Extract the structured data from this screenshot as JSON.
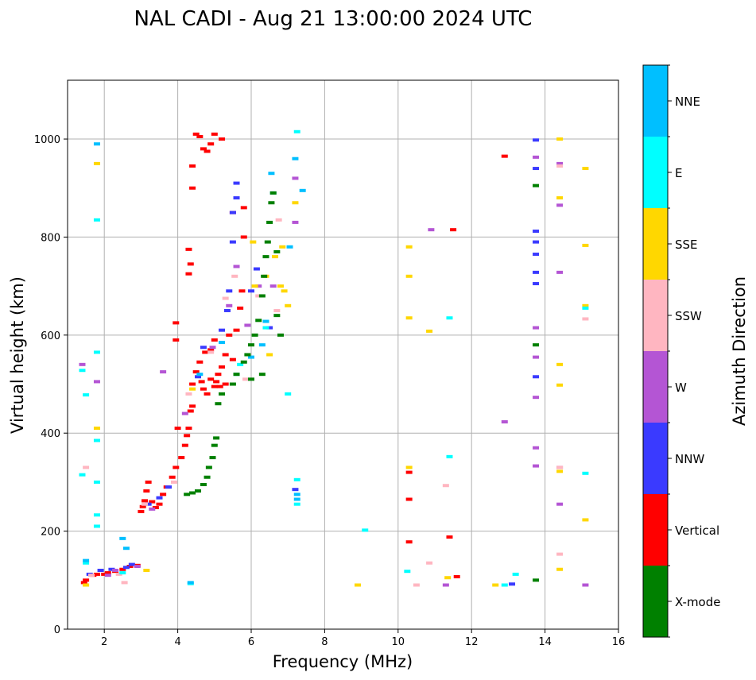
{
  "chart_data": {
    "type": "scatter",
    "title": "NAL CADI - Aug 21 13:00:00 2024 UTC",
    "xlabel": "Frequency (MHz)",
    "ylabel": "Virtual height (km)",
    "xlim": [
      1,
      16
    ],
    "ylim": [
      0,
      1120
    ],
    "xticks": [
      2,
      4,
      6,
      8,
      10,
      12,
      14,
      16
    ],
    "yticks": [
      0,
      200,
      400,
      600,
      800,
      1000
    ],
    "grid": true,
    "colorbar": {
      "label": "Azimuth Direction",
      "categories": [
        {
          "name": "X-mode",
          "color": "#008000"
        },
        {
          "name": "Vertical",
          "color": "#ff0000"
        },
        {
          "name": "NNW",
          "color": "#3a3aff"
        },
        {
          "name": "W",
          "color": "#b455d4"
        },
        {
          "name": "SSW",
          "color": "#ffb6c1"
        },
        {
          "name": "SSE",
          "color": "#ffd700"
        },
        {
          "name": "E",
          "color": "#00ffff"
        },
        {
          "name": "NNE",
          "color": "#00bfff"
        }
      ]
    },
    "series": [
      {
        "name": "Vertical",
        "points": [
          [
            1.45,
            95
          ],
          [
            1.5,
            100
          ],
          [
            1.7,
            110
          ],
          [
            1.8,
            112
          ],
          [
            2.0,
            112
          ],
          [
            2.1,
            115
          ],
          [
            2.3,
            118
          ],
          [
            2.5,
            122
          ],
          [
            2.7,
            128
          ],
          [
            2.9,
            130
          ],
          [
            3.0,
            240
          ],
          [
            3.05,
            250
          ],
          [
            3.1,
            262
          ],
          [
            3.15,
            282
          ],
          [
            3.2,
            300
          ],
          [
            3.3,
            260
          ],
          [
            3.4,
            248
          ],
          [
            3.5,
            255
          ],
          [
            3.6,
            275
          ],
          [
            3.7,
            290
          ],
          [
            3.85,
            310
          ],
          [
            3.95,
            330
          ],
          [
            4.0,
            410
          ],
          [
            4.1,
            350
          ],
          [
            4.2,
            375
          ],
          [
            4.25,
            395
          ],
          [
            4.3,
            410
          ],
          [
            4.35,
            445
          ],
          [
            4.4,
            455
          ],
          [
            4.4,
            500
          ],
          [
            4.5,
            525
          ],
          [
            4.6,
            545
          ],
          [
            4.65,
            505
          ],
          [
            4.75,
            565
          ],
          [
            4.8,
            480
          ],
          [
            4.9,
            570
          ],
          [
            5.0,
            590
          ],
          [
            5.05,
            505
          ],
          [
            5.1,
            520
          ],
          [
            5.2,
            535
          ],
          [
            5.3,
            560
          ],
          [
            5.4,
            600
          ],
          [
            5.5,
            550
          ],
          [
            5.6,
            610
          ],
          [
            5.7,
            655
          ],
          [
            5.75,
            690
          ],
          [
            4.9,
            510
          ],
          [
            5.0,
            495
          ],
          [
            5.15,
            495
          ],
          [
            5.3,
            500
          ],
          [
            4.7,
            490
          ],
          [
            3.95,
            590
          ],
          [
            3.95,
            625
          ],
          [
            4.3,
            725
          ],
          [
            4.3,
            775
          ],
          [
            4.35,
            745
          ],
          [
            4.4,
            900
          ],
          [
            4.4,
            945
          ],
          [
            4.5,
            1010
          ],
          [
            4.6,
            1005
          ],
          [
            4.7,
            980
          ],
          [
            4.8,
            975
          ],
          [
            4.9,
            990
          ],
          [
            5.0,
            1010
          ],
          [
            5.2,
            1000
          ],
          [
            5.5,
            850
          ],
          [
            5.8,
            860
          ],
          [
            5.8,
            800
          ],
          [
            10.3,
            265
          ],
          [
            10.3,
            320
          ],
          [
            10.3,
            178
          ],
          [
            11.4,
            188
          ],
          [
            11.6,
            107
          ],
          [
            11.5,
            815
          ],
          [
            12.9,
            965
          ]
        ]
      },
      {
        "name": "NNW",
        "points": [
          [
            1.6,
            112
          ],
          [
            1.9,
            120
          ],
          [
            2.2,
            122
          ],
          [
            2.6,
            126
          ],
          [
            2.75,
            132
          ],
          [
            3.2,
            255
          ],
          [
            3.5,
            268
          ],
          [
            3.75,
            290
          ],
          [
            4.55,
            515
          ],
          [
            4.7,
            575
          ],
          [
            5.2,
            610
          ],
          [
            5.35,
            650
          ],
          [
            5.4,
            690
          ],
          [
            5.5,
            790
          ],
          [
            5.5,
            850
          ],
          [
            5.6,
            910
          ],
          [
            5.6,
            880
          ],
          [
            6.0,
            690
          ],
          [
            6.15,
            735
          ],
          [
            6.5,
            615
          ],
          [
            7.2,
            285
          ],
          [
            13.1,
            92
          ],
          [
            13.75,
            515
          ],
          [
            13.75,
            705
          ],
          [
            13.75,
            728
          ],
          [
            13.75,
            765
          ],
          [
            13.75,
            790
          ],
          [
            13.75,
            812
          ],
          [
            13.75,
            940
          ],
          [
            13.75,
            998
          ]
        ]
      },
      {
        "name": "W",
        "points": [
          [
            1.4,
            540
          ],
          [
            1.8,
            505
          ],
          [
            2.1,
            110
          ],
          [
            2.3,
            120
          ],
          [
            2.9,
            128
          ],
          [
            3.3,
            245
          ],
          [
            3.6,
            525
          ],
          [
            4.2,
            440
          ],
          [
            4.95,
            575
          ],
          [
            5.4,
            660
          ],
          [
            5.6,
            740
          ],
          [
            5.9,
            620
          ],
          [
            6.2,
            700
          ],
          [
            6.6,
            700
          ],
          [
            7.2,
            920
          ],
          [
            7.2,
            830
          ],
          [
            10.9,
            815
          ],
          [
            11.3,
            90
          ],
          [
            12.9,
            423
          ],
          [
            13.75,
            333
          ],
          [
            13.75,
            370
          ],
          [
            13.75,
            473
          ],
          [
            13.75,
            555
          ],
          [
            13.75,
            615
          ],
          [
            13.75,
            963
          ],
          [
            14.4,
            255
          ],
          [
            14.4,
            330
          ],
          [
            14.4,
            728
          ],
          [
            14.4,
            865
          ],
          [
            14.4,
            950
          ],
          [
            15.1,
            90
          ]
        ]
      },
      {
        "name": "SSW",
        "points": [
          [
            1.5,
            330
          ],
          [
            1.65,
            110
          ],
          [
            2.4,
            112
          ],
          [
            2.55,
            95
          ],
          [
            3.1,
            255
          ],
          [
            3.9,
            300
          ],
          [
            4.3,
            480
          ],
          [
            4.9,
            565
          ],
          [
            5.3,
            675
          ],
          [
            5.55,
            720
          ],
          [
            5.85,
            510
          ],
          [
            6.2,
            680
          ],
          [
            6.7,
            650
          ],
          [
            6.75,
            835
          ],
          [
            10.5,
            90
          ],
          [
            10.85,
            135
          ],
          [
            11.3,
            293
          ],
          [
            14.4,
            153
          ],
          [
            14.4,
            330
          ],
          [
            14.4,
            945
          ],
          [
            15.1,
            633
          ]
        ]
      },
      {
        "name": "SSE",
        "points": [
          [
            1.5,
            90
          ],
          [
            1.8,
            410
          ],
          [
            1.8,
            950
          ],
          [
            3.15,
            120
          ],
          [
            4.4,
            490
          ],
          [
            6.05,
            790
          ],
          [
            6.1,
            700
          ],
          [
            6.4,
            720
          ],
          [
            6.65,
            760
          ],
          [
            6.8,
            700
          ],
          [
            6.85,
            780
          ],
          [
            6.9,
            690
          ],
          [
            7.0,
            660
          ],
          [
            7.2,
            870
          ],
          [
            6.5,
            560
          ],
          [
            8.9,
            90
          ],
          [
            10.3,
            330
          ],
          [
            10.3,
            635
          ],
          [
            10.3,
            720
          ],
          [
            10.3,
            780
          ],
          [
            10.85,
            608
          ],
          [
            11.35,
            105
          ],
          [
            12.65,
            90
          ],
          [
            14.4,
            122
          ],
          [
            14.4,
            322
          ],
          [
            14.4,
            498
          ],
          [
            14.4,
            540
          ],
          [
            14.4,
            880
          ],
          [
            14.4,
            1000
          ],
          [
            15.1,
            223
          ],
          [
            15.1,
            783
          ],
          [
            15.1,
            940
          ],
          [
            15.1,
            660
          ]
        ]
      },
      {
        "name": "E",
        "points": [
          [
            1.4,
            315
          ],
          [
            1.4,
            528
          ],
          [
            1.5,
            478
          ],
          [
            1.8,
            300
          ],
          [
            1.8,
            385
          ],
          [
            1.8,
            565
          ],
          [
            1.8,
            835
          ],
          [
            1.8,
            210
          ],
          [
            1.8,
            233
          ],
          [
            1.5,
            135
          ],
          [
            2.5,
            115
          ],
          [
            4.35,
            93
          ],
          [
            5.7,
            540
          ],
          [
            6.4,
            615
          ],
          [
            7.0,
            480
          ],
          [
            7.25,
            1015
          ],
          [
            7.25,
            305
          ],
          [
            7.25,
            255
          ],
          [
            9.1,
            202
          ],
          [
            10.25,
            118
          ],
          [
            11.4,
            635
          ],
          [
            11.4,
            352
          ],
          [
            12.9,
            90
          ],
          [
            13.2,
            112
          ],
          [
            15.1,
            318
          ],
          [
            15.1,
            655
          ]
        ]
      },
      {
        "name": "NNE",
        "points": [
          [
            1.5,
            140
          ],
          [
            1.8,
            990
          ],
          [
            2.5,
            185
          ],
          [
            2.6,
            165
          ],
          [
            4.35,
            95
          ],
          [
            4.6,
            520
          ],
          [
            5.2,
            585
          ],
          [
            5.6,
            520
          ],
          [
            6.0,
            555
          ],
          [
            6.3,
            580
          ],
          [
            6.4,
            628
          ],
          [
            6.55,
            930
          ],
          [
            6.6,
            890
          ],
          [
            7.05,
            780
          ],
          [
            7.2,
            960
          ],
          [
            7.25,
            275
          ],
          [
            7.25,
            265
          ],
          [
            7.4,
            895
          ]
        ]
      },
      {
        "name": "X-mode",
        "points": [
          [
            4.25,
            275
          ],
          [
            4.4,
            278
          ],
          [
            4.55,
            282
          ],
          [
            4.7,
            295
          ],
          [
            4.8,
            310
          ],
          [
            4.85,
            330
          ],
          [
            4.95,
            350
          ],
          [
            5.0,
            375
          ],
          [
            5.05,
            390
          ],
          [
            5.1,
            460
          ],
          [
            5.2,
            480
          ],
          [
            5.5,
            500
          ],
          [
            5.6,
            520
          ],
          [
            5.8,
            545
          ],
          [
            5.9,
            560
          ],
          [
            6.0,
            580
          ],
          [
            6.1,
            600
          ],
          [
            6.2,
            630
          ],
          [
            6.3,
            680
          ],
          [
            6.35,
            720
          ],
          [
            6.4,
            760
          ],
          [
            6.45,
            790
          ],
          [
            6.5,
            830
          ],
          [
            6.55,
            870
          ],
          [
            6.6,
            890
          ],
          [
            6.7,
            770
          ],
          [
            6.7,
            640
          ],
          [
            6.8,
            600
          ],
          [
            6.3,
            520
          ],
          [
            6.0,
            510
          ],
          [
            13.75,
            100
          ],
          [
            13.75,
            580
          ],
          [
            13.75,
            905
          ]
        ]
      }
    ]
  }
}
